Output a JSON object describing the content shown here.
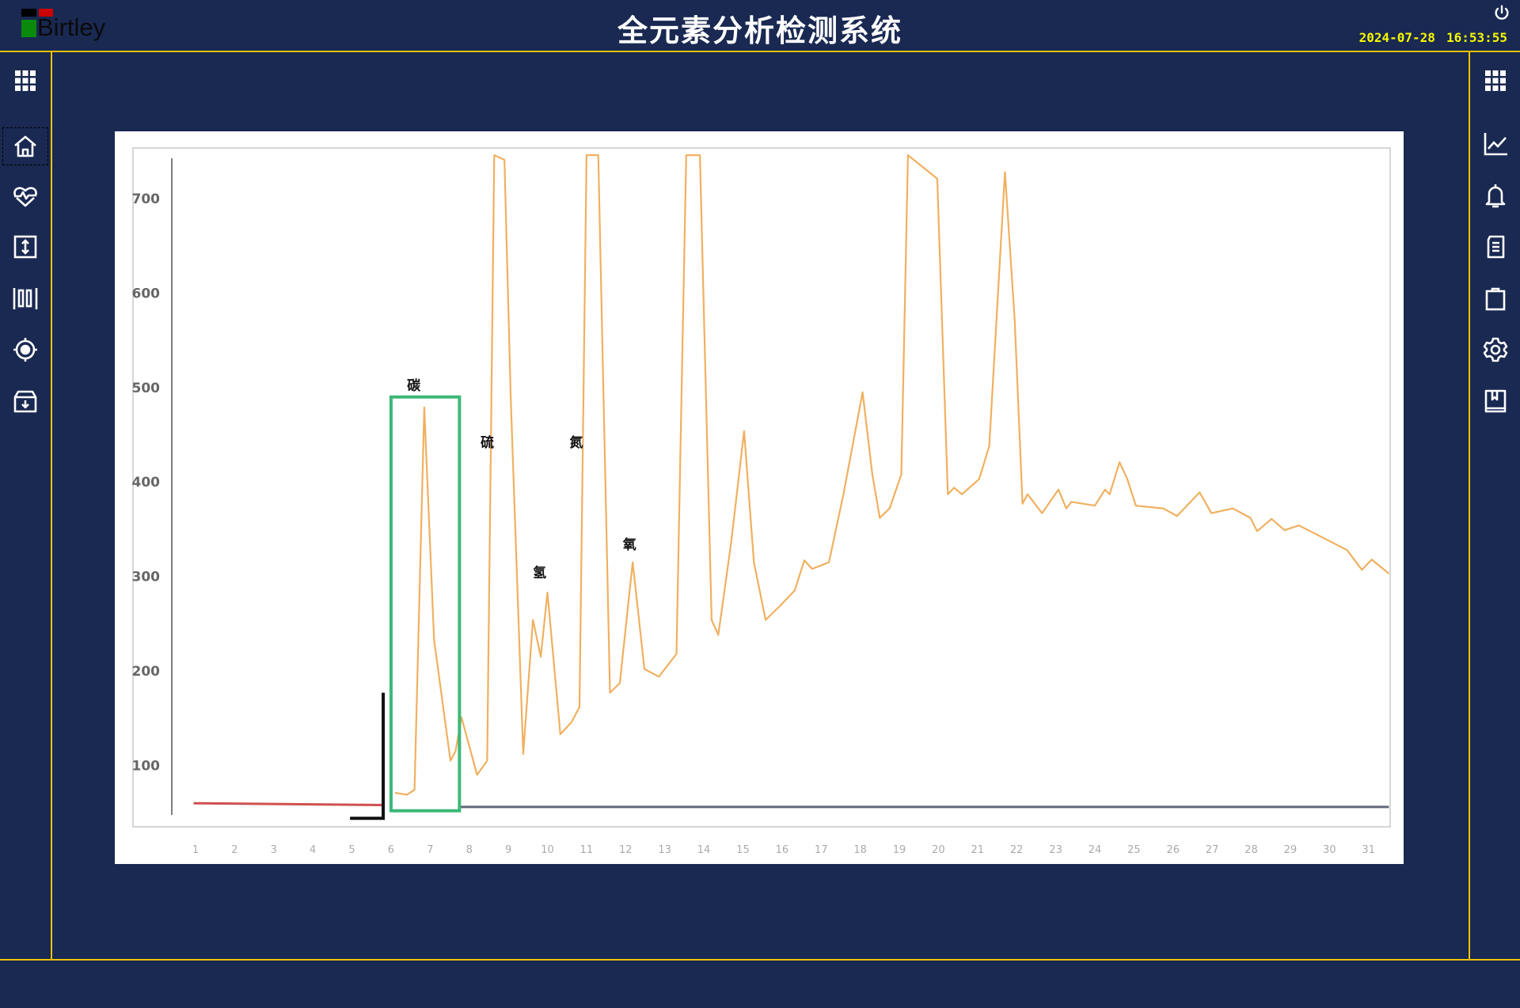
{
  "header": {
    "logo_text": "Birtley",
    "title": "全元素分析检测系统",
    "date": "2024-07-28",
    "time": "16:53:55",
    "power_icon": "power-icon"
  },
  "left_nav": [
    {
      "icon": "grid-icon"
    },
    {
      "icon": "home-icon",
      "active": true
    },
    {
      "icon": "heart-pulse-icon"
    },
    {
      "icon": "vertical-resize-icon"
    },
    {
      "icon": "barcode-icon"
    },
    {
      "icon": "target-icon"
    },
    {
      "icon": "archive-download-icon"
    }
  ],
  "right_nav": [
    {
      "icon": "grid-icon"
    },
    {
      "icon": "line-chart-icon"
    },
    {
      "icon": "bell-icon"
    },
    {
      "icon": "document-icon"
    },
    {
      "icon": "clipboard-icon"
    },
    {
      "icon": "gear-icon"
    },
    {
      "icon": "book-icon"
    }
  ],
  "colors": {
    "background": "#192952",
    "accent_line": "#f2c200",
    "clock": "#f7f700",
    "curve": "#f0b060",
    "highlight_box": "#3cb878",
    "baseline_red": "#d05050"
  },
  "chart_data": {
    "type": "line",
    "title": "",
    "xlabel": "",
    "ylabel": "",
    "xlim": [
      0,
      32
    ],
    "ylim": [
      40,
      750
    ],
    "x_ticks": [
      "1",
      "2",
      "3",
      "4",
      "5",
      "6",
      "7",
      "8",
      "9",
      "10",
      "11",
      "12",
      "13",
      "14",
      "15",
      "16",
      "17",
      "18",
      "19",
      "20",
      "21",
      "22",
      "23",
      "24",
      "25",
      "26",
      "27",
      "28",
      "29",
      "30",
      "31"
    ],
    "y_ticks": [
      "100",
      "200",
      "300",
      "400",
      "500",
      "600",
      "700"
    ],
    "grid": false,
    "series": [
      {
        "color": "#f0b060",
        "points": [
          [
            6.1,
            71
          ],
          [
            6.4,
            69
          ],
          [
            6.6,
            74
          ],
          [
            6.85,
            479
          ],
          [
            7.1,
            233
          ],
          [
            7.52,
            105
          ],
          [
            7.65,
            115
          ],
          [
            7.8,
            151
          ],
          [
            8.2,
            90
          ],
          [
            8.46,
            105
          ],
          [
            8.64,
            746
          ],
          [
            8.9,
            741
          ],
          [
            9.06,
            490
          ],
          [
            9.38,
            112
          ],
          [
            9.63,
            254
          ],
          [
            9.83,
            215
          ],
          [
            10.0,
            283
          ],
          [
            10.33,
            133
          ],
          [
            10.62,
            146
          ],
          [
            10.82,
            162
          ],
          [
            11.0,
            746
          ],
          [
            11.3,
            746
          ],
          [
            11.6,
            177
          ],
          [
            11.85,
            187
          ],
          [
            12.18,
            315
          ],
          [
            12.48,
            202
          ],
          [
            12.85,
            194
          ],
          [
            13.3,
            218
          ],
          [
            13.55,
            746
          ],
          [
            13.9,
            746
          ],
          [
            14.2,
            254
          ],
          [
            14.37,
            238
          ],
          [
            14.7,
            336
          ],
          [
            15.03,
            454
          ],
          [
            15.28,
            315
          ],
          [
            15.58,
            254
          ],
          [
            15.95,
            269
          ],
          [
            16.32,
            285
          ],
          [
            16.57,
            317
          ],
          [
            16.77,
            308
          ],
          [
            17.2,
            315
          ],
          [
            17.57,
            387
          ],
          [
            18.06,
            495
          ],
          [
            18.31,
            408
          ],
          [
            18.5,
            362
          ],
          [
            18.75,
            372
          ],
          [
            19.05,
            408
          ],
          [
            19.22,
            746
          ],
          [
            19.97,
            721
          ],
          [
            20.24,
            387
          ],
          [
            20.4,
            394
          ],
          [
            20.6,
            387
          ],
          [
            21.04,
            403
          ],
          [
            21.3,
            438
          ],
          [
            21.7,
            728
          ],
          [
            21.95,
            572
          ],
          [
            22.15,
            377
          ],
          [
            22.28,
            387
          ],
          [
            22.65,
            367
          ],
          [
            23.07,
            392
          ],
          [
            23.27,
            372
          ],
          [
            23.4,
            379
          ],
          [
            24.0,
            375
          ],
          [
            24.26,
            392
          ],
          [
            24.38,
            387
          ],
          [
            24.63,
            421
          ],
          [
            24.83,
            403
          ],
          [
            25.05,
            375
          ],
          [
            25.75,
            372
          ],
          [
            26.1,
            364
          ],
          [
            26.68,
            389
          ],
          [
            26.98,
            367
          ],
          [
            27.53,
            372
          ],
          [
            27.98,
            362
          ],
          [
            28.15,
            348
          ],
          [
            28.52,
            361
          ],
          [
            28.85,
            349
          ],
          [
            29.22,
            354
          ],
          [
            30.45,
            328
          ],
          [
            30.83,
            307
          ],
          [
            31.08,
            318
          ],
          [
            31.52,
            303
          ]
        ]
      },
      {
        "color": "#d05050",
        "points": [
          [
            0.95,
            60
          ],
          [
            5.8,
            58
          ]
        ]
      },
      {
        "color": "#606878",
        "points": [
          [
            7.75,
            56
          ],
          [
            31.52,
            56
          ]
        ]
      }
    ],
    "highlight": {
      "x": [
        6.0,
        7.75
      ],
      "y": [
        52,
        490
      ],
      "color": "#3cb878"
    },
    "annotations": [
      {
        "text": "碳",
        "x": 6.58,
        "y": 503
      },
      {
        "text": "硫",
        "x": 8.46,
        "y": 443
      },
      {
        "text": "氮",
        "x": 10.74,
        "y": 443
      },
      {
        "text": "氢",
        "x": 9.8,
        "y": 305
      },
      {
        "text": "氧",
        "x": 12.1,
        "y": 335
      }
    ]
  }
}
